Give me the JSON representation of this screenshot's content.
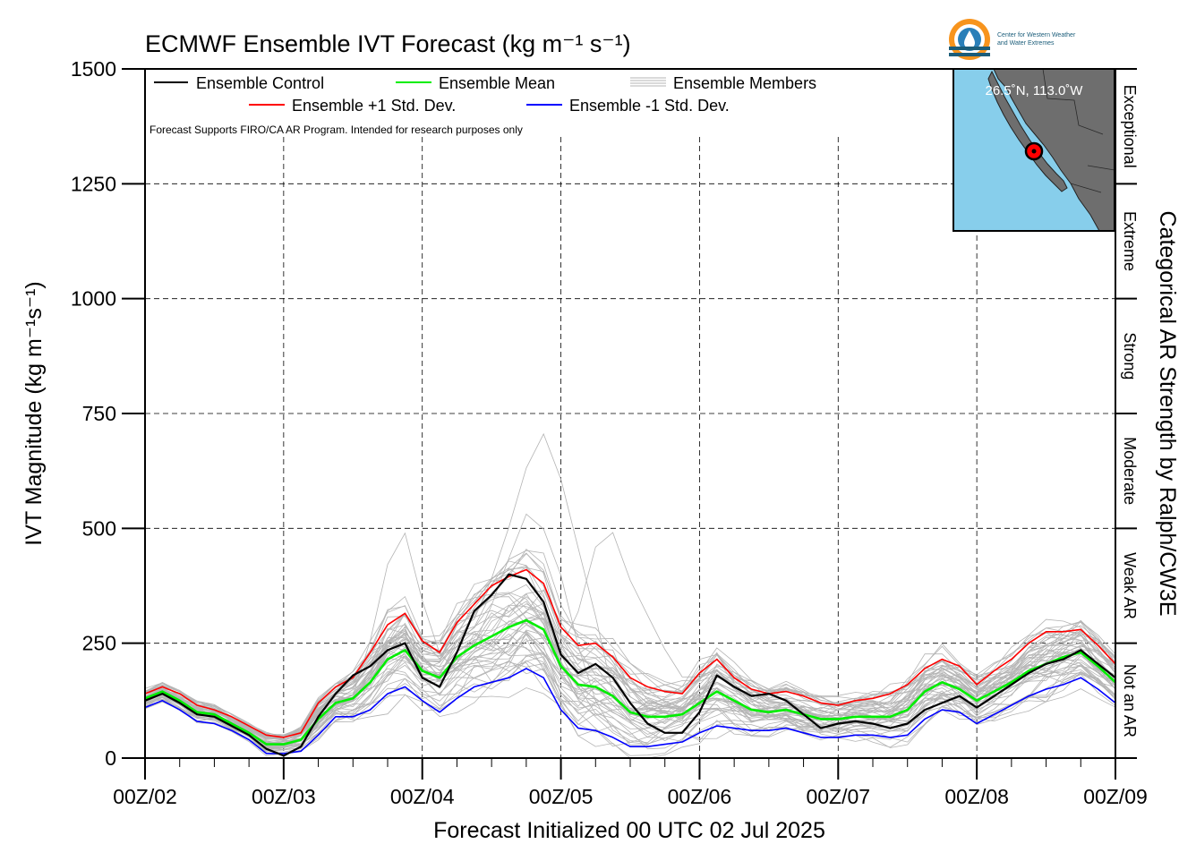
{
  "chart_data": {
    "type": "line",
    "title": "ECMWF Ensemble IVT Forecast (kg m⁻¹ s⁻¹)",
    "ylabel": "IVT Magnitude (kg m⁻¹s⁻¹)",
    "xlabel": "Forecast Initialized 00 UTC 02 Jul 2025",
    "right_label": "Categorical AR Strength by Ralph/CW3E",
    "ylim": [
      0,
      1500
    ],
    "xlim": [
      0,
      168
    ],
    "yticks": [
      0,
      250,
      500,
      750,
      1000,
      1250,
      1500
    ],
    "ytick_labels": [
      "0",
      "250",
      "500",
      "750",
      "1000",
      "1250",
      "1500"
    ],
    "xticks": [
      0,
      24,
      48,
      72,
      96,
      120,
      144,
      168
    ],
    "xtick_labels": [
      "00Z/02",
      "00Z/03",
      "00Z/04",
      "00Z/05",
      "00Z/06",
      "00Z/07",
      "00Z/08",
      "00Z/09"
    ],
    "grid": true,
    "categories": [
      {
        "label": "Not an AR",
        "range": [
          0,
          250
        ]
      },
      {
        "label": "Weak AR",
        "range": [
          250,
          500
        ]
      },
      {
        "label": "Moderate",
        "range": [
          500,
          750
        ]
      },
      {
        "label": "Strong",
        "range": [
          750,
          1000
        ]
      },
      {
        "label": "Extreme",
        "range": [
          1000,
          1250
        ]
      },
      {
        "label": "Exceptional",
        "range": [
          1250,
          1500
        ]
      }
    ],
    "legend_entries": {
      "control": "Ensemble Control",
      "mean": "Ensemble Mean",
      "members": "Ensemble Members",
      "plus": "Ensemble +1 Std. Dev.",
      "minus": "Ensemble -1 Std. Dev."
    },
    "legend_location": "top-left",
    "disclaimer": "Forecast Supports FIRO/CA AR Program. Intended for research purposes only",
    "x": [
      0,
      3,
      6,
      9,
      12,
      15,
      18,
      21,
      24,
      27,
      30,
      33,
      36,
      39,
      42,
      45,
      48,
      51,
      54,
      57,
      60,
      63,
      66,
      69,
      72,
      75,
      78,
      81,
      84,
      87,
      90,
      93,
      96,
      99,
      102,
      105,
      108,
      111,
      114,
      117,
      120,
      123,
      126,
      129,
      132,
      135,
      138,
      141,
      144,
      147,
      150,
      153,
      156,
      159,
      162,
      165,
      168
    ],
    "series": [
      {
        "name": "Ensemble Control",
        "color": "#000000",
        "values": [
          125,
          140,
          120,
          95,
          90,
          70,
          50,
          20,
          5,
          25,
          90,
          140,
          180,
          200,
          235,
          250,
          175,
          155,
          230,
          320,
          355,
          400,
          390,
          340,
          225,
          185,
          205,
          175,
          120,
          75,
          55,
          55,
          100,
          180,
          155,
          135,
          140,
          125,
          95,
          65,
          75,
          80,
          75,
          65,
          75,
          105,
          120,
          135,
          110,
          135,
          160,
          185,
          205,
          215,
          235,
          205,
          175
        ]
      },
      {
        "name": "Ensemble Mean",
        "color": "#00ee00",
        "values": [
          130,
          145,
          125,
          100,
          95,
          75,
          55,
          30,
          30,
          40,
          85,
          120,
          130,
          165,
          215,
          235,
          190,
          175,
          220,
          245,
          265,
          285,
          300,
          280,
          200,
          160,
          155,
          135,
          100,
          90,
          90,
          95,
          120,
          145,
          125,
          105,
          100,
          105,
          95,
          85,
          85,
          90,
          90,
          90,
          105,
          145,
          165,
          150,
          125,
          145,
          165,
          190,
          205,
          220,
          230,
          200,
          165
        ]
      },
      {
        "name": "Ensemble +1 Std. Dev.",
        "color": "#ff0000",
        "values": [
          140,
          155,
          140,
          115,
          105,
          90,
          70,
          50,
          45,
          55,
          120,
          155,
          175,
          230,
          290,
          315,
          255,
          230,
          295,
          335,
          375,
          395,
          410,
          380,
          285,
          245,
          250,
          220,
          175,
          155,
          145,
          140,
          185,
          215,
          175,
          150,
          140,
          145,
          135,
          120,
          115,
          125,
          130,
          140,
          160,
          195,
          215,
          200,
          160,
          190,
          215,
          250,
          275,
          275,
          280,
          245,
          205
        ]
      },
      {
        "name": "Ensemble -1 Std. Dev.",
        "color": "#0000ff",
        "values": [
          110,
          125,
          105,
          80,
          75,
          60,
          40,
          10,
          10,
          15,
          50,
          90,
          90,
          105,
          140,
          155,
          125,
          100,
          130,
          155,
          165,
          175,
          195,
          175,
          105,
          65,
          60,
          45,
          25,
          25,
          30,
          35,
          55,
          70,
          65,
          60,
          60,
          65,
          55,
          45,
          45,
          50,
          50,
          45,
          50,
          85,
          105,
          100,
          75,
          95,
          115,
          135,
          150,
          160,
          175,
          150,
          120
        ]
      }
    ],
    "members_summary": {
      "count": 50,
      "color": "#b4b4b4",
      "peak_value": 735
    }
  },
  "inset_map": {
    "coordinate_label": "26.5˚N, 113.0˚W",
    "ocean_color": "#87ceeb",
    "land_color": "#6e6e6e"
  },
  "logo": {
    "line1": "Center for Western Weather",
    "line2": "and Water Extremes"
  }
}
